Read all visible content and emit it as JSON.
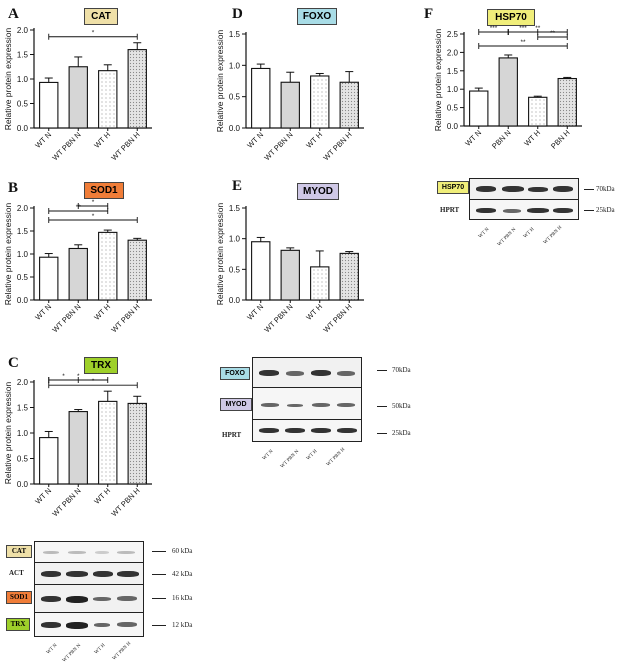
{
  "page": {
    "title": "Relative protein expression figure with western blots"
  },
  "colors": {
    "CAT": "#efe0a8",
    "FOXO": "#a8dce6",
    "HSP70": "#f0ee7a",
    "SOD1": "#f07d38",
    "MYOD": "#cfc8e6",
    "TRX": "#9ed02a"
  },
  "panels": {
    "A": {
      "letter": "A",
      "tag": "CAT"
    },
    "D": {
      "letter": "D",
      "tag": "FOXO"
    },
    "F": {
      "letter": "F",
      "tag": "HSP70"
    },
    "B": {
      "letter": "B",
      "tag": "SOD1"
    },
    "E": {
      "letter": "E",
      "tag": "MYOD"
    },
    "C": {
      "letter": "C",
      "tag": "TRX"
    }
  },
  "chart_data": [
    {
      "id": "A",
      "type": "bar",
      "title": "CAT",
      "ylabel": "Relative protein expression",
      "ylim": [
        0,
        2.0
      ],
      "yticks": [
        "0.0",
        "0.5",
        "1.0",
        "1.5",
        "2.0"
      ],
      "categories": [
        "WT N",
        "WT PBN N",
        "WT H",
        "WT PBN H"
      ],
      "values": [
        0.93,
        1.25,
        1.17,
        1.6
      ],
      "errors": [
        0.09,
        0.2,
        0.12,
        0.14
      ],
      "significance": [
        {
          "from": 0,
          "to": 3,
          "label": "*"
        }
      ]
    },
    {
      "id": "D",
      "type": "bar",
      "title": "FOXO",
      "ylabel": "Relative protein expression",
      "ylim": [
        0,
        1.5
      ],
      "yticks": [
        "0.0",
        "0.5",
        "1.0",
        "1.5"
      ],
      "categories": [
        "WT N",
        "WT PBN N",
        "WT H",
        "WT PBN H"
      ],
      "values": [
        0.95,
        0.73,
        0.83,
        0.73
      ],
      "errors": [
        0.07,
        0.16,
        0.04,
        0.17
      ],
      "significance": []
    },
    {
      "id": "F",
      "type": "bar",
      "title": "HSP70",
      "ylabel": "Relative protein expression",
      "ylim": [
        0,
        2.5
      ],
      "yticks": [
        "0.0",
        "0.5",
        "1.0",
        "1.5",
        "2.0",
        "2.5"
      ],
      "categories": [
        "WT N",
        "PBN N",
        "WT H",
        "PBN H"
      ],
      "values": [
        0.95,
        1.85,
        0.78,
        1.29
      ],
      "errors": [
        0.08,
        0.08,
        0.03,
        0.03
      ],
      "significance": [
        {
          "from": 0,
          "to": 3,
          "label": "**"
        },
        {
          "from": 2,
          "to": 3,
          "label": "**"
        },
        {
          "from": 0,
          "to": 1,
          "label": "***"
        },
        {
          "from": 1,
          "to": 3,
          "label": "**"
        },
        {
          "from": 1,
          "to": 2,
          "label": "***"
        }
      ]
    },
    {
      "id": "B",
      "type": "bar",
      "title": "SOD1",
      "ylabel": "Relative protein expression",
      "ylim": [
        0,
        2.0
      ],
      "yticks": [
        "0.0",
        "0.5",
        "1.0",
        "1.5",
        "2.0"
      ],
      "categories": [
        "WT N",
        "WT PBN N",
        "WT H",
        "WT PBN H"
      ],
      "values": [
        0.93,
        1.12,
        1.47,
        1.3
      ],
      "errors": [
        0.08,
        0.08,
        0.05,
        0.04
      ],
      "significance": [
        {
          "from": 0,
          "to": 3,
          "label": "*"
        },
        {
          "from": 0,
          "to": 2,
          "label": "**"
        },
        {
          "from": 1,
          "to": 2,
          "label": "*"
        }
      ]
    },
    {
      "id": "E",
      "type": "bar",
      "title": "MYOD",
      "ylabel": "Relative protein expression",
      "ylim": [
        0,
        1.5
      ],
      "yticks": [
        "0.0",
        "0.5",
        "1.0",
        "1.5"
      ],
      "categories": [
        "WT N",
        "WT PBN N",
        "WT H",
        "WT PBN H"
      ],
      "values": [
        0.95,
        0.81,
        0.54,
        0.76
      ],
      "errors": [
        0.07,
        0.04,
        0.26,
        0.03
      ],
      "significance": []
    },
    {
      "id": "C",
      "type": "bar",
      "title": "TRX",
      "ylabel": "Relative protein expression",
      "ylim": [
        0,
        2.0
      ],
      "yticks": [
        "0.0",
        "0.5",
        "1.0",
        "1.5",
        "2.0"
      ],
      "categories": [
        "WT N",
        "WT PBN N",
        "WT H",
        "WT PBN H"
      ],
      "values": [
        0.91,
        1.42,
        1.62,
        1.58
      ],
      "errors": [
        0.12,
        0.04,
        0.2,
        0.14
      ],
      "significance": [
        {
          "from": 0,
          "to": 3,
          "label": "*"
        },
        {
          "from": 0,
          "to": 2,
          "label": "*"
        },
        {
          "from": 0,
          "to": 1,
          "label": "*"
        }
      ]
    }
  ],
  "blots": {
    "hsp": {
      "rows": [
        "HSP70",
        "HPRT"
      ],
      "kda": [
        "70kDa",
        "25kDa"
      ],
      "lanes": [
        "WT N",
        "WT PBN N",
        "WT H",
        "WT PBN H"
      ]
    },
    "foxo": {
      "rows": [
        "FOXO",
        "MYOD",
        "HPRT"
      ],
      "kda": [
        "70kDa",
        "50kDa",
        "25kDa"
      ],
      "lanes": [
        "WT N",
        "WT PBN N",
        "WT H",
        "WT PBN H"
      ]
    },
    "cat": {
      "rows": [
        "CAT",
        "ACT",
        "SOD1",
        "TRX"
      ],
      "kda": [
        "60 kDa",
        "42 kDa",
        "16 kDa",
        "12 kDa"
      ],
      "lanes": [
        "WT N",
        "WT PBN N",
        "WT H",
        "WT PBN H"
      ]
    }
  }
}
